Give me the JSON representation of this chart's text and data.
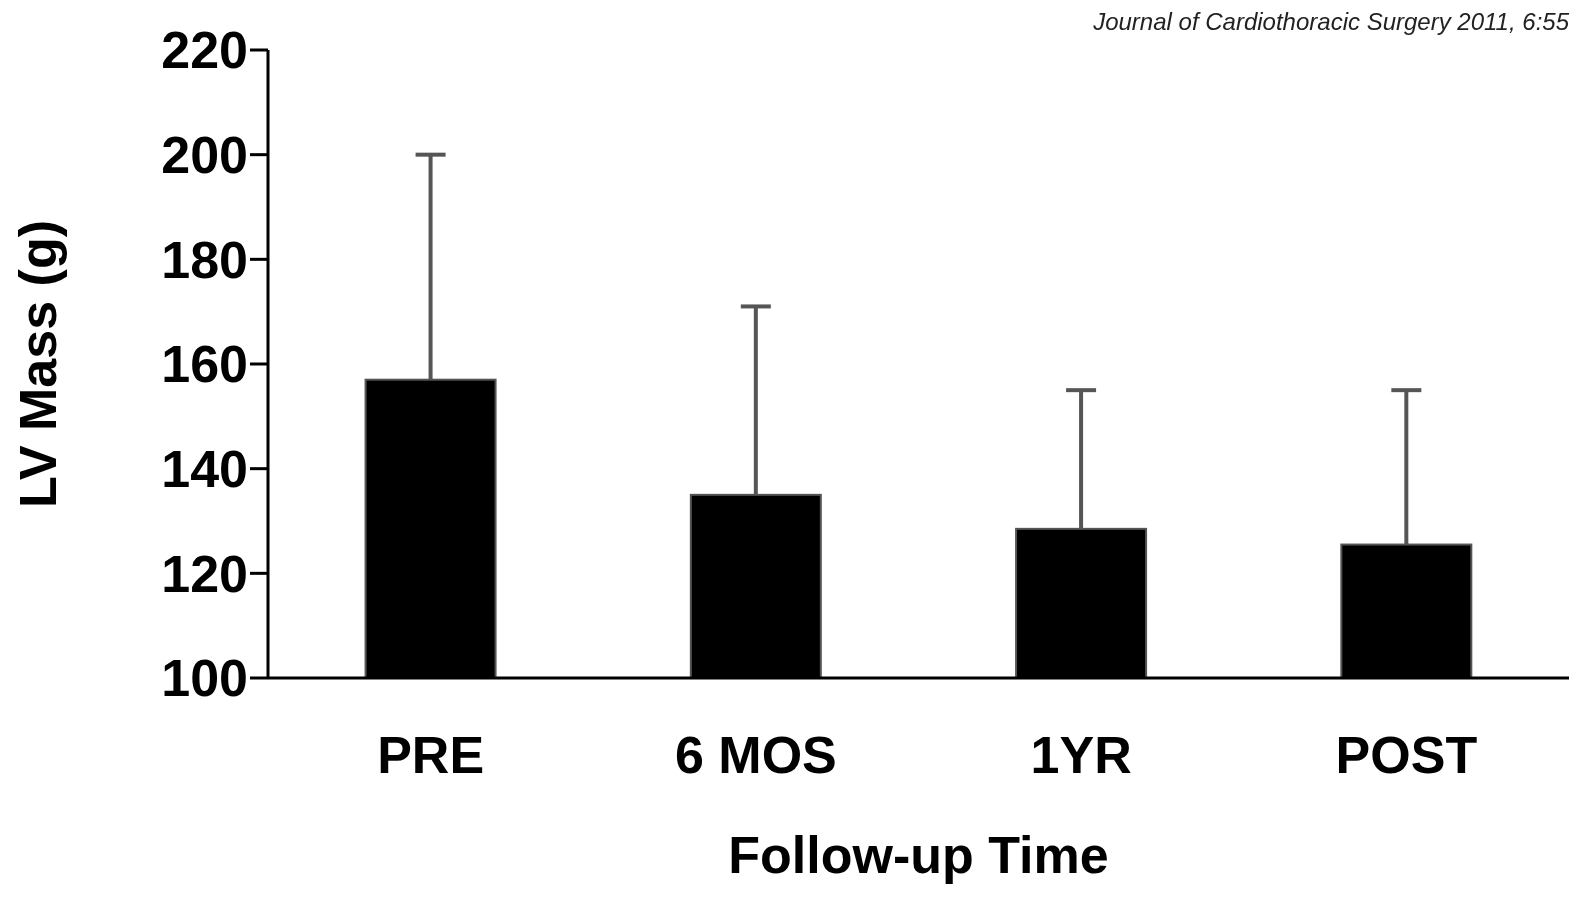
{
  "chart_data": {
    "type": "bar",
    "xlabel": "Follow-up Time",
    "ylabel": "LV Mass (g)",
    "annotations": [
      "Journal of Cardiothoracic Surgery 2011, 6:55"
    ],
    "categories": [
      "PRE",
      "6 MOS",
      "1YR",
      "POST"
    ],
    "values": [
      157,
      135,
      128.5,
      125.5
    ],
    "color": "#000000",
    "errors": [
      [
        157,
        200
      ],
      [
        135,
        171
      ],
      [
        128.5,
        155
      ],
      [
        125.5,
        155
      ]
    ],
    "ylim": [
      100,
      220
    ],
    "yticks": [
      100,
      120,
      140,
      160,
      180,
      200,
      220
    ],
    "grid": false
  }
}
